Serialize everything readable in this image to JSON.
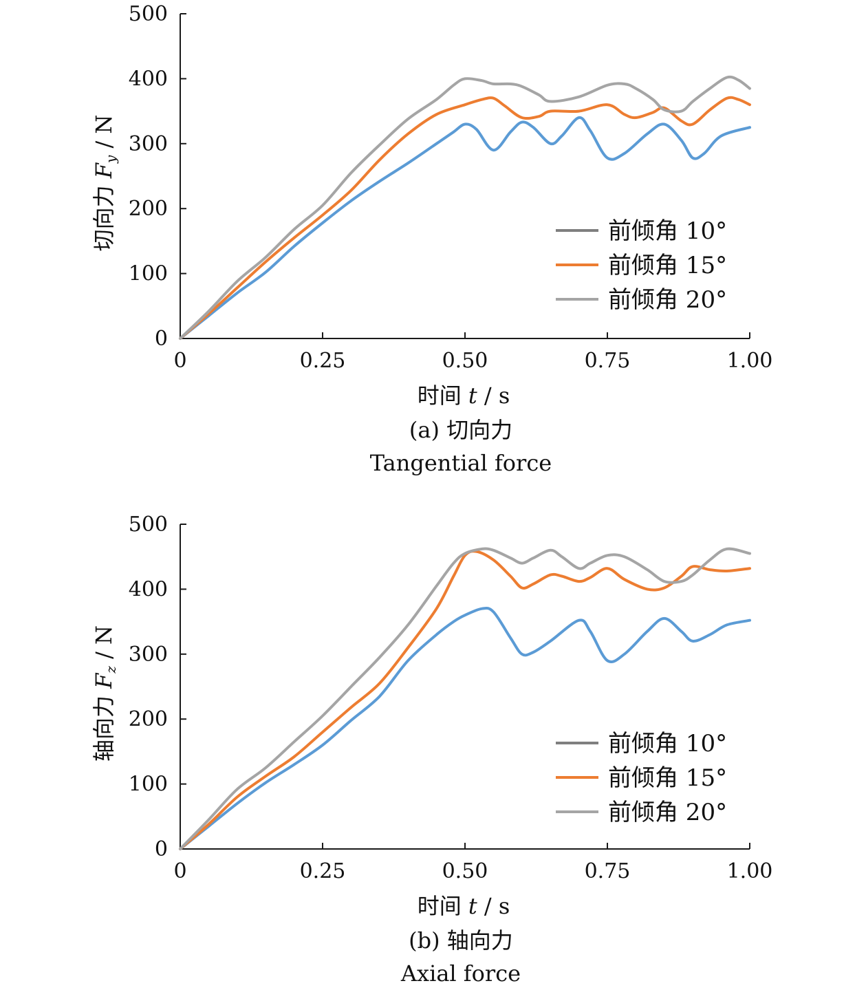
{
  "chart_data": [
    {
      "id": "a",
      "type": "line",
      "caption": "(a) 切向力",
      "caption_en": "Tangential force",
      "ylabel": "切向力 Fy / N",
      "ylabel_parts": {
        "prefix": "切向力 ",
        "var": "F",
        "sub": "y",
        "suffix": " / N"
      },
      "xlabel": "时间 t / s",
      "xlabel_parts": {
        "prefix": "时间 ",
        "var": "t",
        "suffix": " / s"
      },
      "xlim": [
        0,
        1.0
      ],
      "ylim": [
        0,
        500
      ],
      "xticks": [
        0,
        0.25,
        0.5,
        0.75,
        1.0
      ],
      "xtick_labels": [
        "0",
        "0.25",
        "0.50",
        "0.75",
        "1.00"
      ],
      "yticks": [
        0,
        100,
        200,
        300,
        400,
        500
      ],
      "ytick_labels": [
        "0",
        "100",
        "200",
        "300",
        "400",
        "500"
      ],
      "legend_position": "lower-right",
      "series": [
        {
          "name": "前倾角 10°",
          "color": "#5b9bd5",
          "legend_color": "#7f7f7f",
          "x": [
            0,
            0.05,
            0.1,
            0.15,
            0.2,
            0.25,
            0.3,
            0.35,
            0.4,
            0.45,
            0.48,
            0.5,
            0.52,
            0.55,
            0.58,
            0.6,
            0.62,
            0.65,
            0.67,
            0.7,
            0.72,
            0.75,
            0.78,
            0.82,
            0.85,
            0.88,
            0.9,
            0.92,
            0.95,
            1.0
          ],
          "y": [
            0,
            35,
            70,
            102,
            142,
            178,
            212,
            242,
            270,
            300,
            318,
            330,
            322,
            290,
            318,
            333,
            325,
            300,
            312,
            340,
            320,
            278,
            285,
            315,
            330,
            305,
            278,
            285,
            312,
            325
          ]
        },
        {
          "name": "前倾角 15°",
          "color": "#ed7d31",
          "legend_color": "#ed7d31",
          "x": [
            0,
            0.05,
            0.1,
            0.15,
            0.2,
            0.25,
            0.3,
            0.35,
            0.4,
            0.45,
            0.5,
            0.53,
            0.55,
            0.57,
            0.6,
            0.63,
            0.65,
            0.7,
            0.75,
            0.78,
            0.8,
            0.83,
            0.85,
            0.88,
            0.9,
            0.93,
            0.96,
            0.98,
            1.0
          ],
          "y": [
            0,
            38,
            78,
            118,
            155,
            190,
            228,
            275,
            315,
            345,
            360,
            368,
            370,
            358,
            340,
            342,
            350,
            350,
            360,
            345,
            340,
            348,
            355,
            335,
            330,
            352,
            370,
            368,
            360
          ]
        },
        {
          "name": "前倾角 20°",
          "color": "#a5a5a5",
          "legend_color": "#a5a5a5",
          "x": [
            0,
            0.05,
            0.1,
            0.15,
            0.2,
            0.25,
            0.3,
            0.35,
            0.4,
            0.45,
            0.48,
            0.5,
            0.53,
            0.55,
            0.58,
            0.6,
            0.63,
            0.65,
            0.7,
            0.75,
            0.78,
            0.8,
            0.83,
            0.85,
            0.88,
            0.9,
            0.93,
            0.96,
            0.98,
            1.0
          ],
          "y": [
            0,
            42,
            88,
            125,
            168,
            205,
            255,
            298,
            338,
            368,
            390,
            400,
            397,
            392,
            392,
            388,
            375,
            365,
            372,
            390,
            392,
            385,
            368,
            352,
            350,
            365,
            385,
            402,
            398,
            385
          ]
        }
      ]
    },
    {
      "id": "b",
      "type": "line",
      "caption": "(b) 轴向力",
      "caption_en": "Axial force",
      "ylabel": "轴向力 Fz / N",
      "ylabel_parts": {
        "prefix": "轴向力 ",
        "var": "F",
        "sub": "z",
        "suffix": " / N"
      },
      "xlabel": "时间 t / s",
      "xlabel_parts": {
        "prefix": "时间 ",
        "var": "t",
        "suffix": " / s"
      },
      "xlim": [
        0,
        1.0
      ],
      "ylim": [
        0,
        500
      ],
      "xticks": [
        0,
        0.25,
        0.5,
        0.75,
        1.0
      ],
      "xtick_labels": [
        "0",
        "0.25",
        "0.50",
        "0.75",
        "1.00"
      ],
      "yticks": [
        0,
        100,
        200,
        300,
        400,
        500
      ],
      "ytick_labels": [
        "0",
        "100",
        "200",
        "300",
        "400",
        "500"
      ],
      "legend_position": "lower-right",
      "series": [
        {
          "name": "前倾角 10°",
          "color": "#5b9bd5",
          "legend_color": "#7f7f7f",
          "x": [
            0,
            0.05,
            0.1,
            0.15,
            0.2,
            0.25,
            0.3,
            0.35,
            0.4,
            0.45,
            0.48,
            0.5,
            0.53,
            0.55,
            0.58,
            0.6,
            0.62,
            0.65,
            0.7,
            0.72,
            0.75,
            0.78,
            0.82,
            0.85,
            0.88,
            0.9,
            0.93,
            0.96,
            1.0
          ],
          "y": [
            0,
            35,
            70,
            102,
            130,
            160,
            198,
            235,
            290,
            330,
            350,
            360,
            370,
            365,
            325,
            300,
            303,
            320,
            352,
            335,
            290,
            300,
            335,
            355,
            335,
            320,
            330,
            345,
            352
          ]
        },
        {
          "name": "前倾角 15°",
          "color": "#ed7d31",
          "legend_color": "#ed7d31",
          "x": [
            0,
            0.05,
            0.1,
            0.15,
            0.2,
            0.25,
            0.3,
            0.35,
            0.4,
            0.45,
            0.48,
            0.5,
            0.52,
            0.55,
            0.58,
            0.6,
            0.62,
            0.65,
            0.67,
            0.7,
            0.72,
            0.75,
            0.78,
            0.82,
            0.85,
            0.88,
            0.9,
            0.93,
            0.96,
            1.0
          ],
          "y": [
            0,
            38,
            80,
            112,
            142,
            180,
            218,
            255,
            310,
            370,
            420,
            452,
            458,
            445,
            420,
            402,
            408,
            422,
            420,
            412,
            418,
            432,
            415,
            400,
            402,
            420,
            435,
            430,
            428,
            432
          ]
        },
        {
          "name": "前倾角 20°",
          "color": "#a5a5a5",
          "legend_color": "#a5a5a5",
          "x": [
            0,
            0.05,
            0.1,
            0.15,
            0.2,
            0.25,
            0.3,
            0.35,
            0.4,
            0.45,
            0.48,
            0.5,
            0.53,
            0.55,
            0.58,
            0.6,
            0.62,
            0.65,
            0.67,
            0.7,
            0.72,
            0.75,
            0.78,
            0.82,
            0.85,
            0.88,
            0.9,
            0.93,
            0.96,
            1.0
          ],
          "y": [
            0,
            45,
            92,
            125,
            165,
            205,
            250,
            295,
            345,
            405,
            440,
            455,
            462,
            460,
            448,
            440,
            448,
            460,
            450,
            432,
            440,
            452,
            450,
            430,
            412,
            412,
            422,
            445,
            462,
            455
          ]
        }
      ]
    }
  ]
}
